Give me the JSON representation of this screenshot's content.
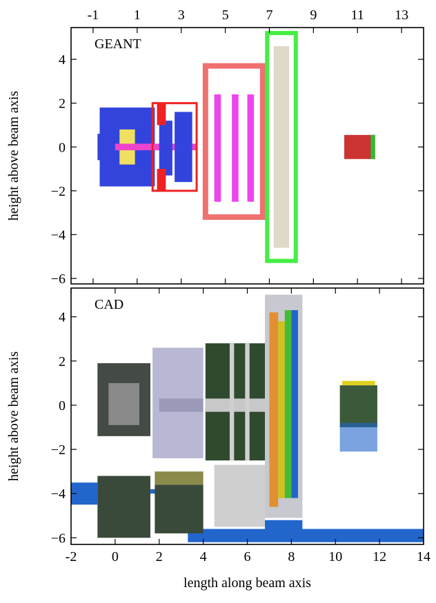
{
  "chart_data": [
    {
      "type": "geometry",
      "panel_label": "GEANT",
      "ylabel": "height above beam axis",
      "xlim": [
        -2,
        14
      ],
      "xticks": [
        -1,
        1,
        3,
        5,
        7,
        9,
        11,
        13
      ],
      "xaxis": "top",
      "ylim": [
        -6.25,
        5.45
      ],
      "yticks": [
        {
          "value": -6,
          "label": "−6"
        },
        {
          "value": -4,
          "label": "−4"
        },
        {
          "value": -2,
          "label": "−2"
        },
        0,
        2,
        4
      ]
    },
    {
      "type": "geometry",
      "panel_label": "CAD",
      "ylabel": "height above beam axis",
      "xlabel": "length along beam axis",
      "xlim": [
        -2,
        14
      ],
      "xticks": [
        -2,
        0,
        2,
        4,
        6,
        8,
        10,
        12,
        14
      ],
      "xaxis": "bottom",
      "ylim": [
        -6.3,
        5.3
      ],
      "yticks": [
        {
          "value": -6,
          "label": "−6"
        },
        {
          "value": -4,
          "label": "−4"
        },
        {
          "value": -2,
          "label": "−2"
        },
        0,
        2,
        4
      ]
    }
  ]
}
